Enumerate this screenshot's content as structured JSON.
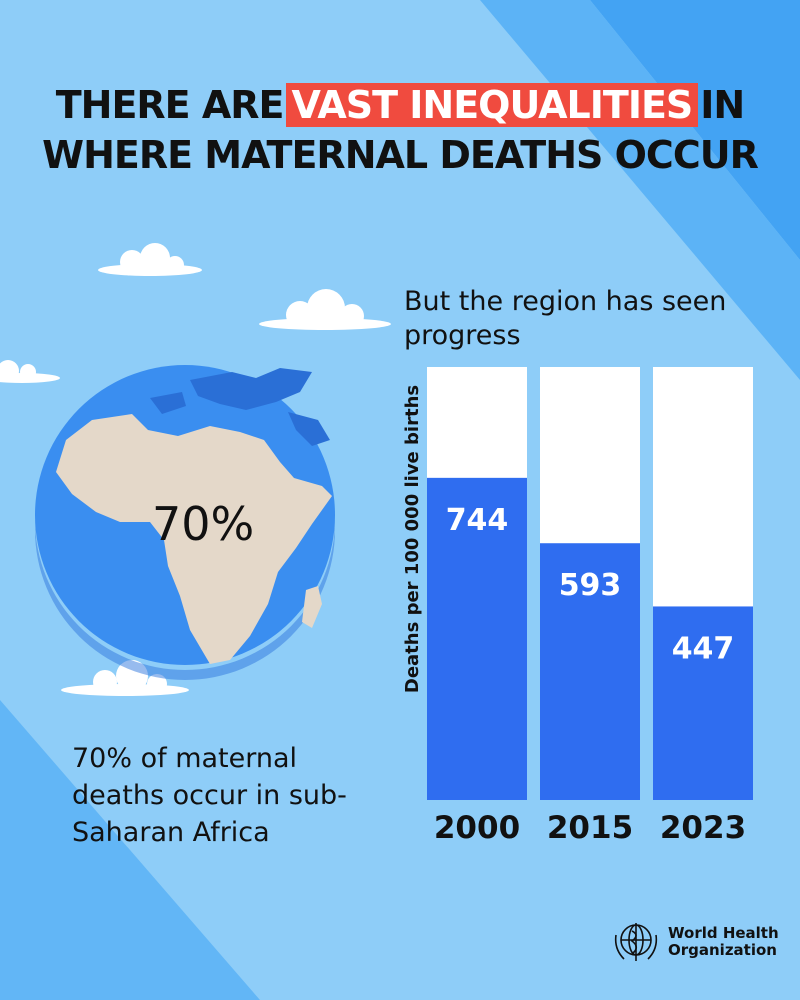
{
  "headline": {
    "before": "THERE ARE",
    "highlight": "VAST INEQUALITIES",
    "after": "IN",
    "line2": "WHERE MATERNAL DEATHS OCCUR"
  },
  "globe": {
    "percent_label": "70%"
  },
  "caption": "70% of maternal deaths occur in sub-Saharan Africa",
  "colors": {
    "background": "#8ecdf8",
    "bar": "#2f6df0",
    "bar_track": "#ffffff",
    "highlight": "#f04b3f",
    "globe_ocean": "#3a8ef0",
    "land": "#e4d8c9"
  },
  "chart_data": {
    "type": "bar",
    "title": "But the region has seen progress",
    "xlabel": "",
    "ylabel": "Deaths per 100 000 live births",
    "categories": [
      "2000",
      "2015",
      "2023"
    ],
    "values": [
      744,
      593,
      447
    ],
    "ylim": [
      0,
      1000
    ],
    "grid": false,
    "data_labels": [
      "744",
      "593",
      "447"
    ]
  },
  "logo": {
    "line1": "World Health",
    "line2": "Organization"
  }
}
